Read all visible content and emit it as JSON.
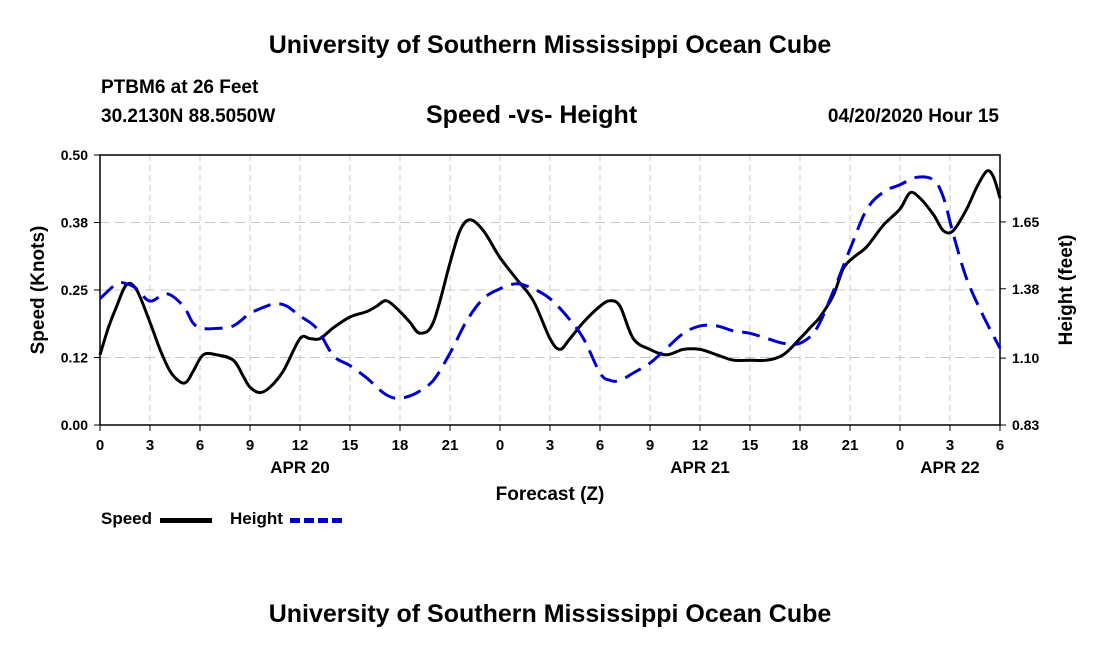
{
  "header": {
    "title": "University of Southern Mississippi Ocean Cube",
    "station": "PTBM6 at 26 Feet",
    "coords": "30.2130N 88.5050W",
    "chart_title": "Speed -vs- Height",
    "datetime": "04/20/2020 Hour 15"
  },
  "footer": {
    "title": "University of Southern Mississippi Ocean Cube"
  },
  "legend": {
    "speed_label": "Speed",
    "height_label": "Height"
  },
  "colors": {
    "speed": "#000000",
    "height": "#0000cc",
    "grid": "#c8c8c8"
  },
  "chart_data": {
    "type": "line",
    "title": "Speed -vs- Height",
    "xlabel": "Forecast (Z)",
    "ylabel": "Speed (Knots)",
    "y2label": "Height (feet)",
    "xlim": [
      0,
      54
    ],
    "ylim": [
      0,
      0.5
    ],
    "y2lim": [
      0.83,
      1.92
    ],
    "x_ticks": [
      0,
      3,
      6,
      9,
      12,
      15,
      18,
      21,
      24,
      27,
      30,
      33,
      36,
      39,
      42,
      45,
      48,
      51,
      54
    ],
    "x_tick_labels": [
      "0",
      "3",
      "6",
      "9",
      "12",
      "15",
      "18",
      "21",
      "0",
      "3",
      "6",
      "9",
      "12",
      "15",
      "18",
      "21",
      "0",
      "3",
      "6"
    ],
    "y_ticks": [
      0,
      0.125,
      0.25,
      0.375,
      0.5
    ],
    "y_tick_labels": [
      "0.00",
      "0.12",
      "0.25",
      "0.38",
      "0.50"
    ],
    "y2_ticks": [
      0.83,
      1.1,
      1.38,
      1.65
    ],
    "y2_tick_labels": [
      "0.83",
      "1.10",
      "1.38",
      "1.65"
    ],
    "date_labels": [
      {
        "x": 12,
        "label": "APR 20"
      },
      {
        "x": 36,
        "label": "APR 21"
      },
      {
        "x": 51,
        "label": "APR 22"
      }
    ],
    "grid": true,
    "series": [
      {
        "name": "Speed",
        "axis": "left",
        "style": "solid",
        "x": [
          0,
          0.5,
          1,
          1.6,
          2.2,
          3,
          3.6,
          4.2,
          4.8,
          5.2,
          5.6,
          6.2,
          7,
          8,
          8.6,
          9,
          9.6,
          10.2,
          11,
          12,
          12.6,
          13.2,
          14,
          15,
          16,
          16.6,
          17.2,
          18,
          18.6,
          19.2,
          20,
          21,
          21.6,
          22.2,
          23,
          24,
          25,
          26,
          27,
          27.6,
          28.2,
          29,
          30,
          30.6,
          31.2,
          32,
          33,
          34,
          35,
          36,
          37,
          38,
          39,
          40,
          41,
          42,
          42.6,
          43.2,
          44,
          44.6,
          45.2,
          46,
          47,
          48,
          48.6,
          49.2,
          50,
          50.6,
          51.2,
          52,
          52.6,
          53.2,
          53.6,
          54
        ],
        "values": [
          0.13,
          0.18,
          0.22,
          0.26,
          0.25,
          0.19,
          0.14,
          0.1,
          0.08,
          0.08,
          0.1,
          0.13,
          0.13,
          0.12,
          0.09,
          0.07,
          0.06,
          0.07,
          0.1,
          0.16,
          0.16,
          0.16,
          0.18,
          0.2,
          0.21,
          0.22,
          0.23,
          0.21,
          0.19,
          0.17,
          0.19,
          0.3,
          0.36,
          0.38,
          0.36,
          0.31,
          0.27,
          0.23,
          0.16,
          0.14,
          0.16,
          0.19,
          0.22,
          0.23,
          0.22,
          0.16,
          0.14,
          0.13,
          0.14,
          0.14,
          0.13,
          0.12,
          0.12,
          0.12,
          0.13,
          0.16,
          0.18,
          0.2,
          0.24,
          0.29,
          0.31,
          0.33,
          0.37,
          0.4,
          0.43,
          0.42,
          0.39,
          0.36,
          0.36,
          0.4,
          0.44,
          0.47,
          0.46,
          0.42
        ]
      },
      {
        "name": "Height",
        "axis": "right",
        "style": "dashed",
        "x": [
          0,
          1,
          1.6,
          2.2,
          3,
          4,
          5,
          5.6,
          6.2,
          7,
          8,
          9,
          10,
          10.6,
          11.2,
          12,
          13,
          14,
          15,
          16,
          17,
          17.6,
          18.2,
          19,
          20,
          21,
          22,
          23,
          24,
          25,
          26,
          27,
          28,
          29,
          30,
          30.6,
          31.2,
          32,
          33,
          34,
          35,
          36,
          37,
          38,
          39,
          40,
          41,
          42,
          43,
          44,
          45,
          46,
          47,
          48,
          49,
          50,
          50.6,
          51.2,
          52,
          53,
          54
        ],
        "values": [
          1.34,
          1.4,
          1.4,
          1.38,
          1.33,
          1.36,
          1.31,
          1.24,
          1.22,
          1.22,
          1.23,
          1.28,
          1.31,
          1.32,
          1.31,
          1.27,
          1.22,
          1.11,
          1.07,
          1.02,
          0.96,
          0.94,
          0.94,
          0.96,
          1.01,
          1.12,
          1.25,
          1.34,
          1.38,
          1.4,
          1.38,
          1.34,
          1.27,
          1.18,
          1.04,
          1.01,
          1.01,
          1.04,
          1.08,
          1.14,
          1.2,
          1.23,
          1.23,
          1.21,
          1.2,
          1.18,
          1.16,
          1.16,
          1.22,
          1.37,
          1.54,
          1.7,
          1.77,
          1.8,
          1.83,
          1.82,
          1.75,
          1.6,
          1.42,
          1.27,
          1.14
        ]
      }
    ]
  }
}
